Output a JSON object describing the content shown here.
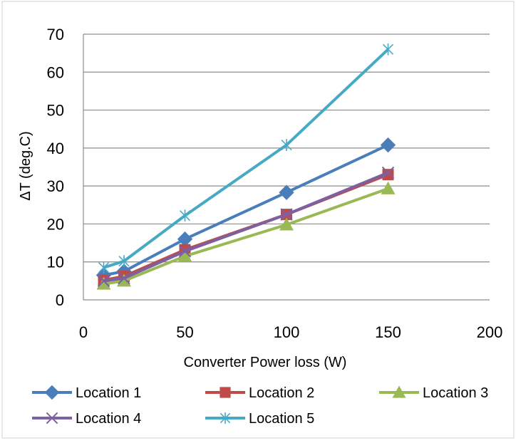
{
  "chart_data": {
    "type": "line",
    "title": "",
    "xlabel": "Converter Power loss (W)",
    "ylabel": "ΔT (deg.C)",
    "xlim": [
      0,
      200
    ],
    "ylim": [
      0,
      70
    ],
    "xticks": [
      0,
      50,
      100,
      150,
      200
    ],
    "yticks": [
      0,
      10,
      20,
      30,
      40,
      50,
      60,
      70
    ],
    "grid": "horizontal",
    "legend_position": "bottom",
    "series": [
      {
        "name": "Location 1",
        "color": "#4a7ebb",
        "marker": "diamond",
        "x": [
          10,
          20,
          50,
          100,
          150
        ],
        "y": [
          6.5,
          7.5,
          16,
          28.3,
          40.8
        ]
      },
      {
        "name": "Location 2",
        "color": "#be4b48",
        "marker": "square",
        "x": [
          10,
          20,
          50,
          100,
          150
        ],
        "y": [
          5.2,
          6.2,
          13.2,
          22.5,
          33
        ]
      },
      {
        "name": "Location 3",
        "color": "#98b954",
        "marker": "triangle",
        "x": [
          10,
          20,
          50,
          100,
          150
        ],
        "y": [
          4.2,
          5,
          11.5,
          19.8,
          29.3
        ]
      },
      {
        "name": "Location 4",
        "color": "#7d60a0",
        "marker": "x",
        "x": [
          10,
          20,
          50,
          100,
          150
        ],
        "y": [
          5,
          5.7,
          12.8,
          22.5,
          33.5
        ]
      },
      {
        "name": "Location 5",
        "color": "#46aac5",
        "marker": "asterisk",
        "x": [
          10,
          20,
          50,
          100,
          150
        ],
        "y": [
          8.5,
          10.2,
          22.2,
          40.8,
          66
        ]
      }
    ]
  }
}
